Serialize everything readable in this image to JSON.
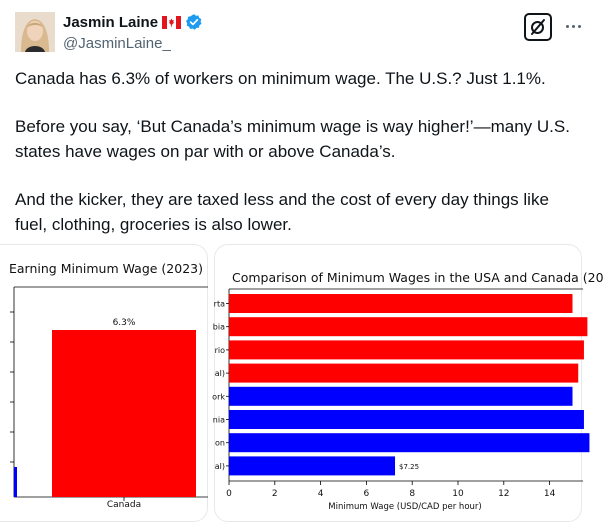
{
  "author": {
    "display_name": "Jasmin Laine",
    "handle": "@JasminLaine_",
    "flag_icon": "canada-flag-icon",
    "verified_color": "#1d9bf0"
  },
  "tweet": {
    "line1": "Canada has 6.3% of workers on minimum wage. The U.S.? Just 1.1%.",
    "line2a": "Before you say, ‘But Canada’s minimum wage is way higher!’—many U.S.",
    "line2b": "states have wages on par with or above Canada’s.",
    "line3a": "And the kicker, they are taxed less and the cost of every day things like",
    "line3b": "fuel, clothing, groceries is also lower."
  },
  "chart_data": [
    {
      "type": "bar",
      "title": "Earning Minimum Wage (2023)",
      "categories": [
        "Canada"
      ],
      "values": [
        6.3
      ],
      "data_labels": [
        "6.3%"
      ],
      "colors": [
        "#ff0000"
      ],
      "partial_bar_color": "#0000ff"
    },
    {
      "type": "bar",
      "orientation": "horizontal",
      "title": "Comparison of Minimum Wages in the USA and Canada (20",
      "xlabel": "Minimum Wage (USD/CAD per hour)",
      "xticks": [
        "0",
        "2",
        "4",
        "6",
        "8",
        "10",
        "12",
        "14"
      ],
      "xlim": [
        0,
        15.3
      ],
      "categories": [
        "rta",
        "bia",
        "rio",
        "al)",
        "ork",
        "nia",
        "on",
        "al)"
      ],
      "values": [
        15.0,
        15.65,
        15.5,
        15.25,
        15.0,
        15.5,
        15.74,
        7.25
      ],
      "colors": [
        "#ff0000",
        "#ff0000",
        "#ff0000",
        "#ff0000",
        "#0000ff",
        "#0000ff",
        "#0000ff",
        "#0000ff"
      ],
      "data_labels": [
        "",
        "",
        "",
        "",
        "",
        "",
        "",
        "$7.25"
      ]
    }
  ]
}
